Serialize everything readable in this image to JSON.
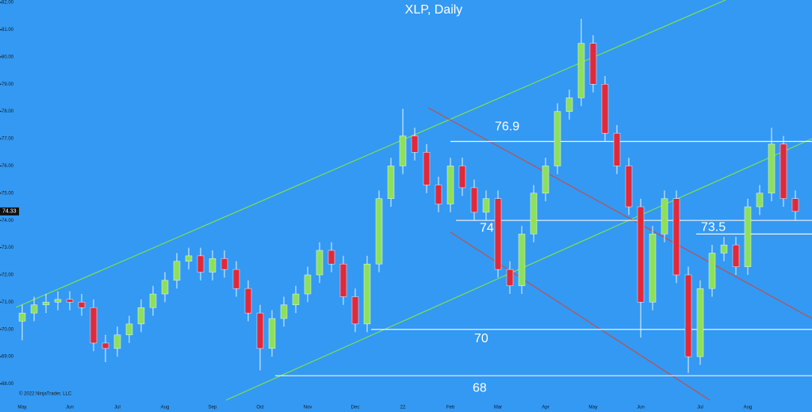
{
  "chart_data": {
    "type": "candlestick",
    "title": "XLP, Daily",
    "copyright": "© 2022 NinjaTrader, LLC",
    "categories": [
      "May",
      null,
      null,
      null,
      "Jun",
      null,
      null,
      null,
      "Jul",
      null,
      null,
      null,
      "Aug",
      null,
      null,
      null,
      "Sep",
      null,
      null,
      null,
      "Oct",
      null,
      null,
      null,
      "Nov",
      null,
      null,
      null,
      "Dec",
      null,
      null,
      null,
      "22",
      null,
      null,
      null,
      "Feb",
      null,
      null,
      null,
      "Mar",
      null,
      null,
      null,
      "Apr",
      null,
      null,
      null,
      "May",
      null,
      null,
      null,
      "Jun",
      null,
      null,
      null,
      null,
      "Jul",
      null,
      null,
      null,
      "Aug",
      null,
      null,
      null,
      null
    ],
    "open": [
      70.3,
      70.6,
      70.9,
      71.0,
      71.1,
      71.0,
      70.8,
      69.5,
      69.3,
      69.8,
      70.2,
      70.8,
      71.3,
      71.8,
      72.5,
      72.7,
      72.1,
      72.6,
      72.2,
      71.5,
      70.6,
      69.3,
      70.4,
      70.9,
      71.3,
      72.0,
      72.9,
      72.4,
      71.2,
      70.2,
      72.4,
      74.8,
      76.0,
      77.1,
      76.5,
      75.3,
      74.6,
      76.0,
      75.2,
      74.3,
      74.8,
      72.2,
      71.6,
      73.5,
      75.0,
      76.0,
      78.0,
      78.5,
      80.5,
      79.0,
      77.2,
      76.0,
      74.5,
      71.0,
      73.5,
      74.8,
      72.0,
      69.0,
      71.5,
      72.8,
      73.1,
      72.3,
      74.5,
      75.0,
      76.8,
      74.8
    ],
    "high": [
      70.9,
      71.2,
      71.3,
      71.4,
      71.4,
      71.3,
      71.1,
      69.8,
      70.1,
      70.5,
      71.1,
      71.6,
      72.1,
      72.8,
      73.0,
      73.0,
      72.9,
      72.9,
      72.5,
      71.8,
      70.9,
      70.7,
      71.2,
      71.6,
      72.3,
      73.2,
      73.2,
      72.7,
      71.5,
      72.7,
      75.1,
      76.3,
      78.1,
      77.4,
      76.8,
      75.6,
      76.3,
      76.3,
      75.5,
      75.1,
      75.1,
      72.5,
      73.8,
      75.3,
      76.3,
      78.3,
      78.8,
      81.4,
      80.8,
      79.3,
      77.5,
      76.3,
      74.8,
      73.8,
      75.1,
      75.1,
      72.3,
      71.8,
      73.1,
      73.4,
      73.4,
      74.8,
      75.3,
      77.4,
      77.1,
      75.1
    ],
    "low": [
      69.6,
      70.3,
      70.6,
      70.7,
      70.7,
      70.5,
      69.2,
      68.8,
      69.0,
      69.5,
      69.9,
      70.5,
      71.0,
      71.5,
      72.2,
      71.8,
      71.8,
      71.9,
      71.2,
      70.3,
      68.5,
      69.0,
      70.1,
      70.6,
      71.0,
      71.7,
      72.1,
      70.9,
      69.9,
      69.9,
      72.1,
      74.5,
      75.7,
      76.2,
      75.0,
      74.3,
      74.3,
      74.9,
      74.0,
      74.0,
      71.9,
      71.3,
      71.3,
      73.2,
      74.7,
      75.7,
      77.7,
      78.2,
      78.7,
      76.9,
      75.7,
      74.2,
      69.7,
      70.7,
      73.2,
      71.7,
      68.4,
      68.7,
      71.2,
      72.5,
      72.0,
      72.0,
      74.2,
      74.7,
      74.5,
      74.0
    ],
    "close": [
      70.6,
      70.9,
      71.0,
      71.1,
      71.0,
      70.8,
      69.5,
      69.3,
      69.8,
      70.2,
      70.8,
      71.3,
      71.8,
      72.5,
      72.7,
      72.1,
      72.6,
      72.2,
      71.5,
      70.6,
      69.3,
      70.4,
      70.9,
      71.3,
      72.0,
      72.9,
      72.4,
      71.2,
      70.2,
      72.4,
      74.8,
      76.0,
      77.1,
      76.5,
      75.3,
      74.6,
      76.0,
      75.2,
      74.3,
      74.8,
      72.2,
      71.6,
      73.5,
      75.0,
      76.0,
      78.0,
      78.5,
      80.5,
      79.0,
      77.2,
      76.0,
      74.5,
      71.0,
      73.5,
      74.8,
      72.0,
      69.0,
      71.5,
      72.8,
      73.1,
      72.3,
      74.5,
      75.0,
      76.8,
      74.8,
      74.33
    ],
    "up_color": "#8ee05a",
    "down_color": "#e0293a",
    "last_price": 74.33,
    "levels": [
      {
        "value": 76.9,
        "label": "76.9"
      },
      {
        "value": 74,
        "label": "74"
      },
      {
        "value": 73.5,
        "label": "73.5"
      },
      {
        "value": 70,
        "label": "70"
      },
      {
        "value": 68.3,
        "label": "68"
      }
    ],
    "ylim": [
      67.55,
      82.09
    ],
    "yticks": [
      {
        "value": 68,
        "label": "68.00"
      },
      {
        "value": 69,
        "label": "69.00"
      },
      {
        "value": 70,
        "label": "70.00"
      },
      {
        "value": 71,
        "label": "71.00"
      },
      {
        "value": 72,
        "label": "72.00"
      },
      {
        "value": 73,
        "label": "73.00"
      },
      {
        "value": 74,
        "label": "74.00"
      },
      {
        "value": 75,
        "label": "75.00"
      },
      {
        "value": 76,
        "label": "76.00"
      },
      {
        "value": 77,
        "label": "77.00"
      },
      {
        "value": 78,
        "label": "78.00"
      },
      {
        "value": 79,
        "label": "79.00"
      },
      {
        "value": 80,
        "label": "80.00"
      },
      {
        "value": 81,
        "label": "81.00"
      },
      {
        "value": 82,
        "label": "82.00"
      }
    ]
  }
}
